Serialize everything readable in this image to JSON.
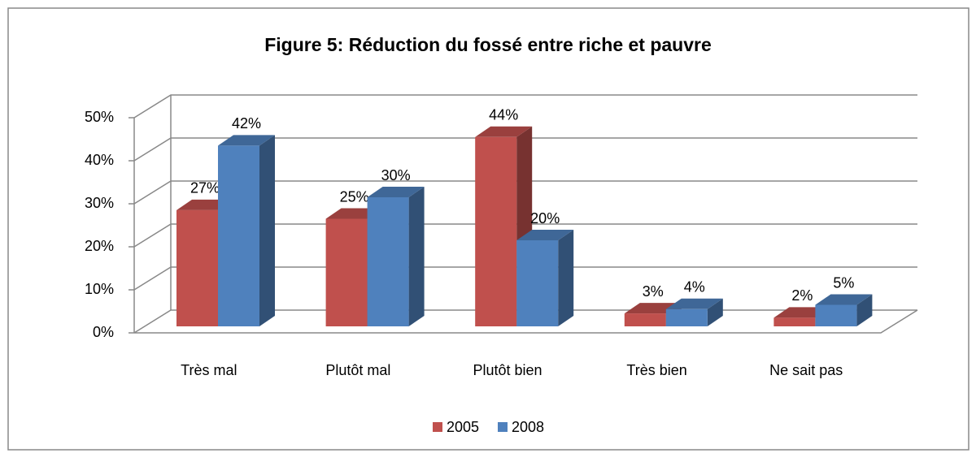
{
  "chart_data": {
    "type": "bar3d",
    "title": "Figure 5: Réduction du fossé entre riche et pauvre",
    "categories": [
      "Très mal",
      "Plutôt mal",
      "Plutôt bien",
      "Très bien",
      "Ne sait pas"
    ],
    "series": [
      {
        "name": "2005",
        "color": "#c0504d",
        "values": [
          27,
          25,
          44,
          3,
          2
        ],
        "value_labels": [
          "27%",
          "25%",
          "44%",
          "3%",
          "2%"
        ]
      },
      {
        "name": "2008",
        "color": "#4f81bd",
        "values": [
          42,
          30,
          20,
          4,
          5
        ],
        "value_labels": [
          "42%",
          "30%",
          "20%",
          "4%",
          "5%"
        ]
      }
    ],
    "ylim": [
      0,
      50
    ],
    "yticks": [
      {
        "value": 0,
        "label": "0%"
      },
      {
        "value": 10,
        "label": "10%"
      },
      {
        "value": 20,
        "label": "20%"
      },
      {
        "value": 30,
        "label": "30%"
      },
      {
        "value": 40,
        "label": "40%"
      },
      {
        "value": 50,
        "label": "50%"
      }
    ],
    "grid": true,
    "legend": "bottom"
  }
}
